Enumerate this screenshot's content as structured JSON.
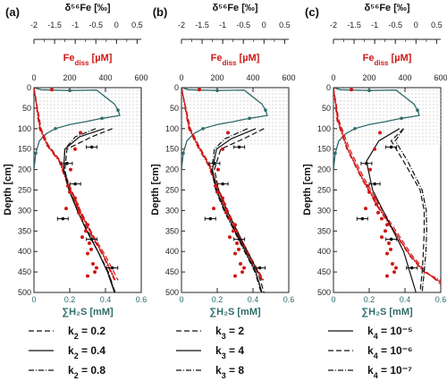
{
  "colors": {
    "fe_red": "#d01818",
    "h2s_teal": "#2f6b6b",
    "iso_black": "#111111",
    "shade": "#b8b8b8"
  },
  "axes": {
    "top_label": "δ⁵⁶Fe [‰]",
    "mid_label": "Fe",
    "mid_label_sub": "diss",
    "mid_label_unit": " [µM]",
    "bottom_label": "∑H₂S [mM]",
    "depth_label": "Depth [cm]",
    "top_ticks": [
      "-2",
      "-1.5",
      "-1",
      "-0.5",
      "0",
      "0.5"
    ],
    "mid_ticks": [
      "0",
      "200",
      "400",
      "600"
    ],
    "bottom_ticks": [
      "0",
      "0.2",
      "0.4",
      "0.6"
    ],
    "depth_ticks": [
      "0",
      "50",
      "100",
      "150",
      "200",
      "250",
      "300",
      "350",
      "400",
      "450",
      "500"
    ]
  },
  "chart_data": [
    {
      "type": "scatter",
      "panel": "(a)",
      "depth_range": [
        0,
        500
      ],
      "h2s_range": [
        0,
        0.6
      ],
      "fe_range": [
        0,
        600
      ],
      "delta56fe_range": [
        -2,
        0.6
      ],
      "shaded_depth_range": [
        0,
        140
      ],
      "legend": [
        {
          "prefix": "k",
          "sub": "2",
          "value": " = 0.2",
          "dash": "dashed"
        },
        {
          "prefix": "k",
          "sub": "2",
          "value": " = 0.4",
          "dash": "solid"
        },
        {
          "prefix": "k",
          "sub": "2",
          "value": " = 0.8",
          "dash": "dashdot"
        }
      ],
      "h2s_profile": [
        [
          0,
          0
        ],
        [
          0.04,
          5
        ],
        [
          0.1,
          6
        ],
        [
          0.2,
          7
        ],
        [
          0.35,
          6
        ],
        [
          0.45,
          40
        ],
        [
          0.47,
          55
        ],
        [
          0.48,
          68
        ],
        [
          0.45,
          70
        ],
        [
          0.38,
          75
        ],
        [
          0.29,
          83
        ],
        [
          0.2,
          90
        ],
        [
          0.12,
          100
        ],
        [
          0.07,
          112
        ],
        [
          0.03,
          130
        ],
        [
          0.01,
          160
        ],
        [
          0.0,
          200
        ]
      ],
      "fe_data": [
        [
          100,
          5
        ],
        [
          260,
          110
        ],
        [
          230,
          150
        ],
        [
          205,
          200
        ],
        [
          190,
          240
        ],
        [
          200,
          255
        ],
        [
          230,
          270
        ],
        [
          240,
          285
        ],
        [
          180,
          295
        ],
        [
          250,
          305
        ],
        [
          270,
          320
        ],
        [
          300,
          335
        ],
        [
          290,
          350
        ],
        [
          270,
          365
        ],
        [
          310,
          380
        ],
        [
          320,
          395
        ],
        [
          300,
          405
        ],
        [
          330,
          430
        ],
        [
          340,
          450
        ],
        [
          350,
          440
        ],
        [
          300,
          460
        ]
      ],
      "iso_data": [
        [
          -0.6,
          145
        ],
        [
          -1.2,
          185
        ],
        [
          -1.0,
          235
        ],
        [
          -1.3,
          320
        ],
        [
          -0.6,
          370
        ],
        [
          -0.1,
          440
        ]
      ],
      "fe_model_dashed": [
        [
          0,
          0
        ],
        [
          40,
          100
        ],
        [
          80,
          140
        ],
        [
          150,
          180
        ],
        [
          200,
          240
        ],
        [
          260,
          300
        ],
        [
          330,
          360
        ],
        [
          400,
          410
        ],
        [
          470,
          470
        ]
      ],
      "fe_model_solid": [
        [
          0,
          0
        ],
        [
          35,
          100
        ],
        [
          75,
          140
        ],
        [
          145,
          180
        ],
        [
          195,
          240
        ],
        [
          255,
          300
        ],
        [
          325,
          360
        ],
        [
          390,
          410
        ],
        [
          455,
          470
        ]
      ],
      "fe_model_dashdot": [
        [
          0,
          0
        ],
        [
          30,
          100
        ],
        [
          70,
          140
        ],
        [
          140,
          180
        ],
        [
          190,
          240
        ],
        [
          250,
          300
        ],
        [
          320,
          360
        ],
        [
          385,
          410
        ],
        [
          450,
          470
        ]
      ],
      "iso_model_dashed": [
        [
          -0.1,
          100
        ],
        [
          -0.6,
          120
        ],
        [
          -1.2,
          150
        ],
        [
          -1.25,
          200
        ],
        [
          -1.15,
          250
        ],
        [
          -0.95,
          300
        ],
        [
          -0.7,
          350
        ],
        [
          -0.45,
          400
        ],
        [
          -0.2,
          450
        ],
        [
          -0.05,
          500
        ]
      ],
      "iso_model_solid": [
        [
          -0.3,
          100
        ],
        [
          -0.9,
          120
        ],
        [
          -1.25,
          150
        ],
        [
          -1.28,
          200
        ],
        [
          -1.15,
          250
        ],
        [
          -0.95,
          300
        ],
        [
          -0.72,
          350
        ],
        [
          -0.45,
          400
        ],
        [
          -0.22,
          450
        ],
        [
          -0.05,
          500
        ]
      ],
      "iso_model_dashdot": [
        [
          -0.5,
          100
        ],
        [
          -1.0,
          120
        ],
        [
          -1.25,
          150
        ],
        [
          -1.28,
          200
        ],
        [
          -1.15,
          250
        ],
        [
          -0.95,
          300
        ],
        [
          -0.72,
          350
        ],
        [
          -0.45,
          400
        ],
        [
          -0.2,
          450
        ],
        [
          -0.03,
          500
        ]
      ]
    },
    {
      "type": "scatter",
      "panel": "(b)",
      "depth_range": [
        0,
        500
      ],
      "h2s_range": [
        0,
        0.6
      ],
      "fe_range": [
        0,
        600
      ],
      "delta56fe_range": [
        -2,
        0.6
      ],
      "shaded_depth_range": [
        0,
        140
      ],
      "legend": [
        {
          "prefix": "k",
          "sub": "3",
          "value": " = 2",
          "dash": "dashed"
        },
        {
          "prefix": "k",
          "sub": "3",
          "value": " = 4",
          "dash": "solid"
        },
        {
          "prefix": "k",
          "sub": "3",
          "value": " = 8",
          "dash": "dashdot"
        }
      ],
      "h2s_profile": [
        [
          0,
          0
        ],
        [
          0.04,
          5
        ],
        [
          0.1,
          6
        ],
        [
          0.2,
          7
        ],
        [
          0.35,
          6
        ],
        [
          0.45,
          40
        ],
        [
          0.47,
          55
        ],
        [
          0.48,
          68
        ],
        [
          0.45,
          70
        ],
        [
          0.38,
          75
        ],
        [
          0.29,
          83
        ],
        [
          0.2,
          90
        ],
        [
          0.12,
          100
        ],
        [
          0.07,
          112
        ],
        [
          0.03,
          130
        ],
        [
          0.01,
          160
        ],
        [
          0.0,
          200
        ]
      ],
      "fe_data": [
        [
          100,
          5
        ],
        [
          260,
          110
        ],
        [
          230,
          150
        ],
        [
          205,
          200
        ],
        [
          190,
          240
        ],
        [
          200,
          255
        ],
        [
          230,
          270
        ],
        [
          240,
          285
        ],
        [
          180,
          295
        ],
        [
          250,
          305
        ],
        [
          270,
          320
        ],
        [
          300,
          335
        ],
        [
          290,
          350
        ],
        [
          270,
          365
        ],
        [
          310,
          380
        ],
        [
          320,
          395
        ],
        [
          300,
          405
        ],
        [
          330,
          430
        ],
        [
          340,
          450
        ],
        [
          350,
          440
        ],
        [
          300,
          460
        ]
      ],
      "iso_data": [
        [
          -0.6,
          145
        ],
        [
          -1.2,
          185
        ],
        [
          -1.0,
          235
        ],
        [
          -1.3,
          320
        ],
        [
          -0.6,
          370
        ],
        [
          -0.1,
          440
        ]
      ],
      "fe_model_dashed": [
        [
          0,
          0
        ],
        [
          50,
          100
        ],
        [
          95,
          140
        ],
        [
          160,
          190
        ],
        [
          210,
          250
        ],
        [
          270,
          310
        ],
        [
          335,
          370
        ],
        [
          395,
          420
        ],
        [
          460,
          470
        ]
      ],
      "fe_model_solid": [
        [
          0,
          0
        ],
        [
          45,
          100
        ],
        [
          90,
          140
        ],
        [
          155,
          190
        ],
        [
          205,
          250
        ],
        [
          265,
          310
        ],
        [
          330,
          370
        ],
        [
          390,
          420
        ],
        [
          455,
          470
        ]
      ],
      "fe_model_dashdot": [
        [
          0,
          0
        ],
        [
          40,
          100
        ],
        [
          85,
          140
        ],
        [
          150,
          190
        ],
        [
          200,
          250
        ],
        [
          260,
          310
        ],
        [
          325,
          370
        ],
        [
          385,
          420
        ],
        [
          450,
          470
        ]
      ],
      "iso_model_dashed": [
        [
          0.0,
          100
        ],
        [
          -0.5,
          125
        ],
        [
          -1.05,
          150
        ],
        [
          -1.2,
          200
        ],
        [
          -1.1,
          250
        ],
        [
          -0.9,
          300
        ],
        [
          -0.65,
          350
        ],
        [
          -0.4,
          400
        ],
        [
          -0.15,
          450
        ],
        [
          0.0,
          500
        ]
      ],
      "iso_model_solid": [
        [
          -0.2,
          100
        ],
        [
          -0.8,
          125
        ],
        [
          -1.15,
          150
        ],
        [
          -1.25,
          200
        ],
        [
          -1.15,
          250
        ],
        [
          -0.95,
          300
        ],
        [
          -0.7,
          350
        ],
        [
          -0.45,
          400
        ],
        [
          -0.2,
          450
        ],
        [
          -0.05,
          500
        ]
      ],
      "iso_model_dashdot": [
        [
          -0.4,
          100
        ],
        [
          -0.95,
          125
        ],
        [
          -1.2,
          150
        ],
        [
          -1.27,
          200
        ],
        [
          -1.17,
          250
        ],
        [
          -0.97,
          300
        ],
        [
          -0.72,
          350
        ],
        [
          -0.47,
          400
        ],
        [
          -0.22,
          450
        ],
        [
          -0.07,
          500
        ]
      ]
    },
    {
      "type": "scatter",
      "panel": "(c)",
      "depth_range": [
        0,
        500
      ],
      "h2s_range": [
        0,
        0.6
      ],
      "fe_range": [
        0,
        600
      ],
      "delta56fe_range": [
        -2,
        0.6
      ],
      "shaded_depth_range": [
        0,
        140
      ],
      "legend": [
        {
          "prefix": "k",
          "sub": "4",
          "value": " = 10⁻⁵",
          "dash": "solid"
        },
        {
          "prefix": "k",
          "sub": "4",
          "value": " = 10⁻⁶",
          "dash": "dashed"
        },
        {
          "prefix": "k",
          "sub": "4",
          "value": " = 10⁻⁷",
          "dash": "dashdot"
        }
      ],
      "h2s_profile": [
        [
          0,
          0
        ],
        [
          0.04,
          5
        ],
        [
          0.1,
          6
        ],
        [
          0.2,
          7
        ],
        [
          0.35,
          6
        ],
        [
          0.45,
          40
        ],
        [
          0.47,
          55
        ],
        [
          0.48,
          68
        ],
        [
          0.45,
          70
        ],
        [
          0.38,
          75
        ],
        [
          0.29,
          83
        ],
        [
          0.2,
          90
        ],
        [
          0.12,
          100
        ],
        [
          0.07,
          112
        ],
        [
          0.03,
          130
        ],
        [
          0.01,
          160
        ],
        [
          0.0,
          200
        ]
      ],
      "fe_data": [
        [
          100,
          5
        ],
        [
          260,
          110
        ],
        [
          230,
          150
        ],
        [
          205,
          200
        ],
        [
          190,
          240
        ],
        [
          200,
          255
        ],
        [
          230,
          270
        ],
        [
          240,
          285
        ],
        [
          180,
          295
        ],
        [
          250,
          305
        ],
        [
          270,
          320
        ],
        [
          300,
          335
        ],
        [
          290,
          350
        ],
        [
          270,
          365
        ],
        [
          310,
          380
        ],
        [
          320,
          395
        ],
        [
          300,
          405
        ],
        [
          330,
          430
        ],
        [
          340,
          450
        ],
        [
          350,
          440
        ],
        [
          300,
          460
        ]
      ],
      "iso_data": [
        [
          -0.6,
          145
        ],
        [
          -1.2,
          185
        ],
        [
          -1.0,
          235
        ],
        [
          -1.3,
          320
        ],
        [
          -0.6,
          370
        ],
        [
          -0.1,
          440
        ]
      ],
      "fe_model_dashed": [
        [
          0,
          0
        ],
        [
          30,
          80
        ],
        [
          90,
          150
        ],
        [
          170,
          220
        ],
        [
          260,
          290
        ],
        [
          350,
          350
        ],
        [
          440,
          410
        ],
        [
          520,
          450
        ],
        [
          600,
          480
        ]
      ],
      "fe_model_solid": [
        [
          0,
          0
        ],
        [
          25,
          80
        ],
        [
          80,
          150
        ],
        [
          160,
          220
        ],
        [
          250,
          290
        ],
        [
          340,
          350
        ],
        [
          430,
          410
        ],
        [
          510,
          450
        ],
        [
          600,
          475
        ]
      ],
      "fe_model_dashdot": [
        [
          0,
          0
        ],
        [
          20,
          80
        ],
        [
          75,
          150
        ],
        [
          155,
          220
        ],
        [
          245,
          290
        ],
        [
          335,
          350
        ],
        [
          425,
          410
        ],
        [
          505,
          450
        ],
        [
          600,
          470
        ]
      ],
      "iso_model_dashed": [
        [
          -0.3,
          100
        ],
        [
          -0.6,
          130
        ],
        [
          -0.3,
          180
        ],
        [
          0.1,
          250
        ],
        [
          0.2,
          300
        ],
        [
          0.2,
          350
        ],
        [
          0.18,
          400
        ],
        [
          0.15,
          450
        ],
        [
          0.1,
          500
        ]
      ],
      "iso_model_solid": [
        [
          -0.4,
          100
        ],
        [
          -0.9,
          130
        ],
        [
          -1.2,
          180
        ],
        [
          -1.05,
          250
        ],
        [
          -0.8,
          300
        ],
        [
          -0.55,
          350
        ],
        [
          -0.3,
          400
        ],
        [
          -0.15,
          450
        ],
        [
          0.0,
          500
        ]
      ],
      "iso_model_dashdot": [
        [
          -0.3,
          100
        ],
        [
          -0.5,
          130
        ],
        [
          -0.2,
          180
        ],
        [
          0.15,
          250
        ],
        [
          0.25,
          300
        ],
        [
          0.26,
          350
        ],
        [
          0.24,
          400
        ],
        [
          0.2,
          450
        ],
        [
          0.15,
          500
        ]
      ]
    }
  ]
}
